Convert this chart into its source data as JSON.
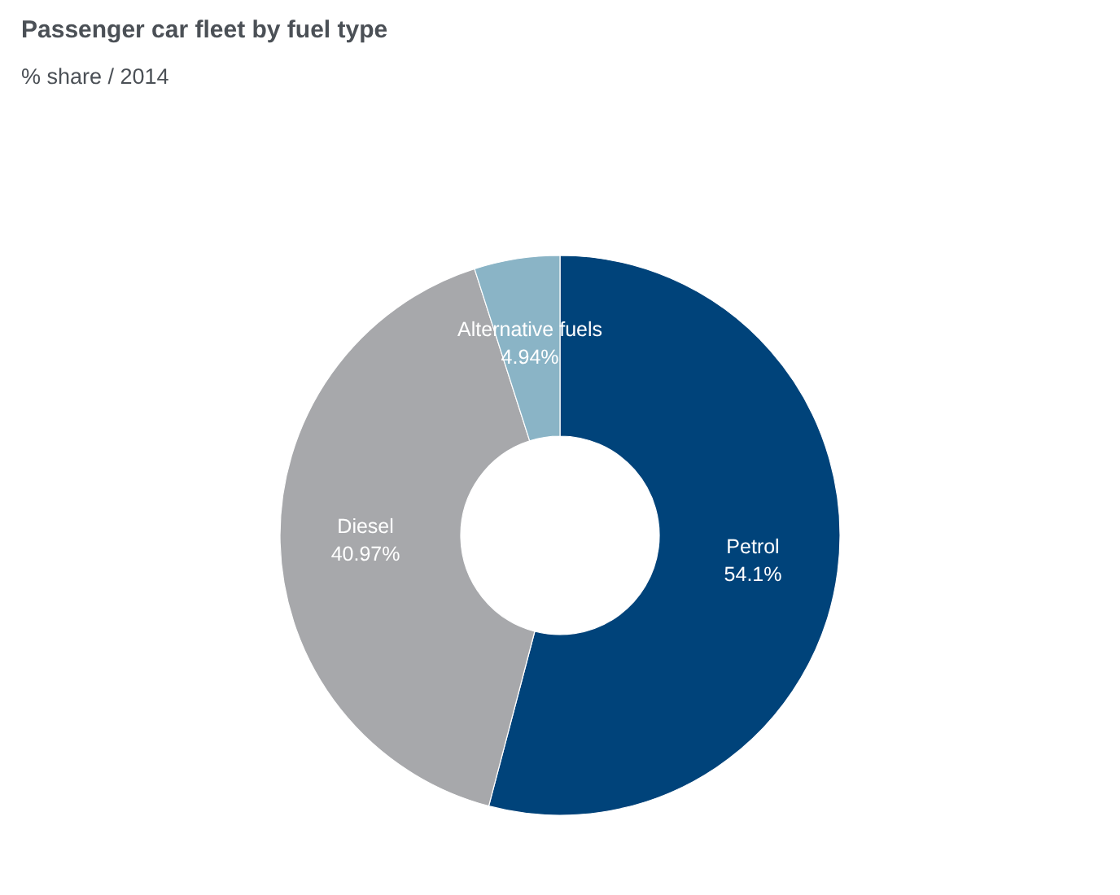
{
  "chart_data": {
    "type": "donut",
    "title": "Passenger car fleet by fuel type",
    "subtitle": "% share / 2014",
    "categories": [
      "Petrol",
      "Diesel",
      "Alternative fuels"
    ],
    "values": [
      54.1,
      40.97,
      4.94
    ],
    "colors": [
      "#00437a",
      "#a7a8ab",
      "#8ab4c6"
    ],
    "value_labels": [
      "54.1%",
      "40.97%",
      "4.94%"
    ]
  }
}
